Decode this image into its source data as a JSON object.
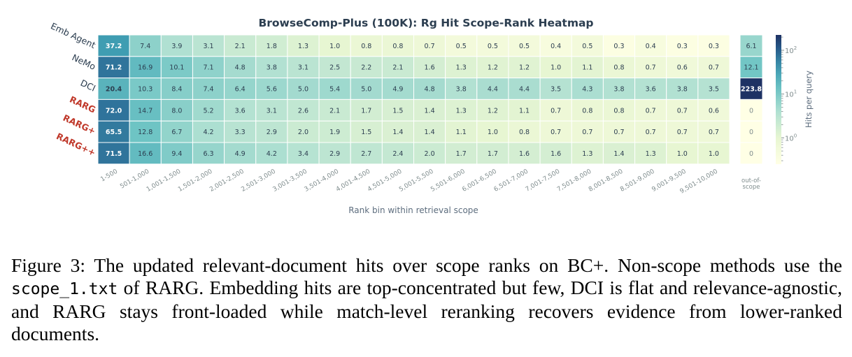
{
  "chart_data": {
    "type": "heatmap",
    "title": "BrowseComp-Plus (100K): Rg Hit Scope-Rank Heatmap",
    "xlabel": "Rank bin within retrieval scope",
    "colorbar_label": "Hits per query",
    "colorbar_scale": "log",
    "colorbar_ticks": [
      {
        "base": "10",
        "exp": "2",
        "value": 100
      },
      {
        "base": "10",
        "exp": "1",
        "value": 10
      },
      {
        "base": "10",
        "exp": "0",
        "value": 1
      }
    ],
    "colorbar_range": [
      0.25,
      224
    ],
    "x_categories": [
      "1-500",
      "501-1,000",
      "1,001-1,500",
      "1,501-2,000",
      "2,001-2,500",
      "2,501-3,000",
      "3,001-3,500",
      "3,501-4,000",
      "4,001-4,500",
      "4,501-5,000",
      "5,001-5,500",
      "5,501-6,000",
      "6,001-6,500",
      "6,501-7,000",
      "7,001-7,500",
      "7,501-8,000",
      "8,001-8,500",
      "8,501-9,000",
      "9,001-9,500",
      "9,501-10,000"
    ],
    "extra_column_label": [
      "out-of-",
      "scope"
    ],
    "rows": [
      {
        "label": "Emb Agent",
        "highlight": false,
        "values": [
          37.2,
          7.4,
          3.9,
          3.1,
          2.1,
          1.8,
          1.3,
          1.0,
          0.8,
          0.8,
          0.7,
          0.5,
          0.5,
          0.5,
          0.4,
          0.5,
          0.3,
          0.4,
          0.3,
          0.3
        ],
        "out_of_scope": 6.1
      },
      {
        "label": "NeMo",
        "highlight": false,
        "values": [
          71.2,
          16.9,
          10.1,
          7.1,
          4.8,
          3.8,
          3.1,
          2.5,
          2.2,
          2.1,
          1.6,
          1.3,
          1.2,
          1.2,
          1.0,
          1.1,
          0.8,
          0.7,
          0.6,
          0.7
        ],
        "out_of_scope": 12.1
      },
      {
        "label": "DCI",
        "highlight": false,
        "values": [
          20.4,
          10.3,
          8.4,
          7.4,
          6.4,
          5.6,
          5.0,
          5.4,
          5.0,
          4.9,
          4.8,
          3.8,
          4.4,
          4.4,
          3.5,
          4.3,
          3.8,
          3.6,
          3.8,
          3.5
        ],
        "out_of_scope": 223.8
      },
      {
        "label": "RARG",
        "highlight": true,
        "values": [
          72.0,
          14.7,
          8.0,
          5.2,
          3.6,
          3.1,
          2.6,
          2.1,
          1.7,
          1.5,
          1.4,
          1.3,
          1.2,
          1.1,
          0.7,
          0.8,
          0.8,
          0.7,
          0.7,
          0.6
        ],
        "out_of_scope": 0
      },
      {
        "label": "RARG+",
        "highlight": true,
        "values": [
          65.5,
          12.8,
          6.7,
          4.2,
          3.3,
          2.9,
          2.0,
          1.9,
          1.5,
          1.4,
          1.4,
          1.1,
          1.0,
          0.8,
          0.7,
          0.7,
          0.7,
          0.7,
          0.7,
          0.7
        ],
        "out_of_scope": 0
      },
      {
        "label": "RARG++",
        "highlight": true,
        "values": [
          71.5,
          16.6,
          9.4,
          6.3,
          4.9,
          4.2,
          3.4,
          2.9,
          2.7,
          2.4,
          2.0,
          1.7,
          1.7,
          1.6,
          1.6,
          1.3,
          1.4,
          1.3,
          1.0,
          1.0
        ],
        "out_of_scope": 0
      }
    ],
    "colors": {
      "highlight_label": "#c0392b",
      "label": "#2c3e50",
      "title": "#2c3e50"
    }
  },
  "caption": {
    "part1": "Figure 3: The updated relevant-document hits over scope ranks on BC+. Non-scope methods use the ",
    "code": "scope_1.txt",
    "part2": " of RARG. Embedding hits are top-concentrated but few, DCI is flat and relevance-agnostic, and RARG stays front-loaded while match-level reranking recovers evidence from lower-ranked documents."
  }
}
